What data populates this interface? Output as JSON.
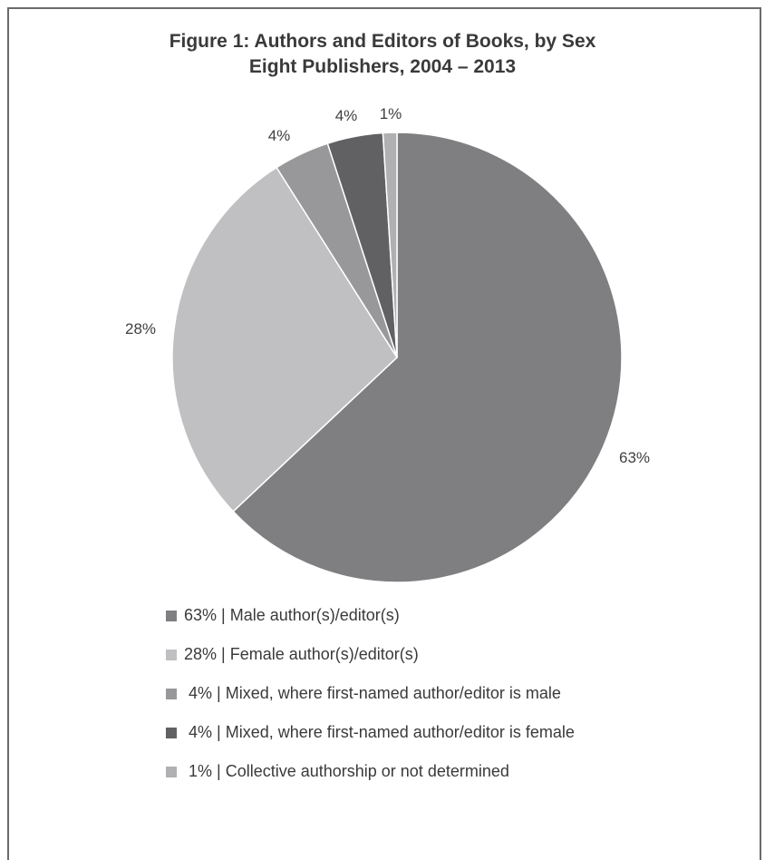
{
  "chart_data": {
    "type": "pie",
    "title": "Figure 1:  Authors and Editors of Books, by Sex",
    "subtitle": "Eight Publishers, 2004 – 2013",
    "slices": [
      {
        "label": "63%",
        "value": 63,
        "color": "#7f7f82",
        "legend": "63% | Male author(s)/editor(s)"
      },
      {
        "label": "28%",
        "value": 28,
        "color": "#c0c0c2",
        "legend": "28% | Female author(s)/editor(s)"
      },
      {
        "label": "4%",
        "value": 4,
        "color": "#98989b",
        "legend": " 4% | Mixed, where first-named author/editor is male"
      },
      {
        "label": "4%",
        "value": 4,
        "color": "#616164",
        "legend": " 4% | Mixed, where first-named author/editor is female"
      },
      {
        "label": "1%",
        "value": 1,
        "color": "#b0b0b3",
        "legend": " 1% | Collective authorship or not determined"
      }
    ],
    "legend_position": "bottom-left"
  }
}
